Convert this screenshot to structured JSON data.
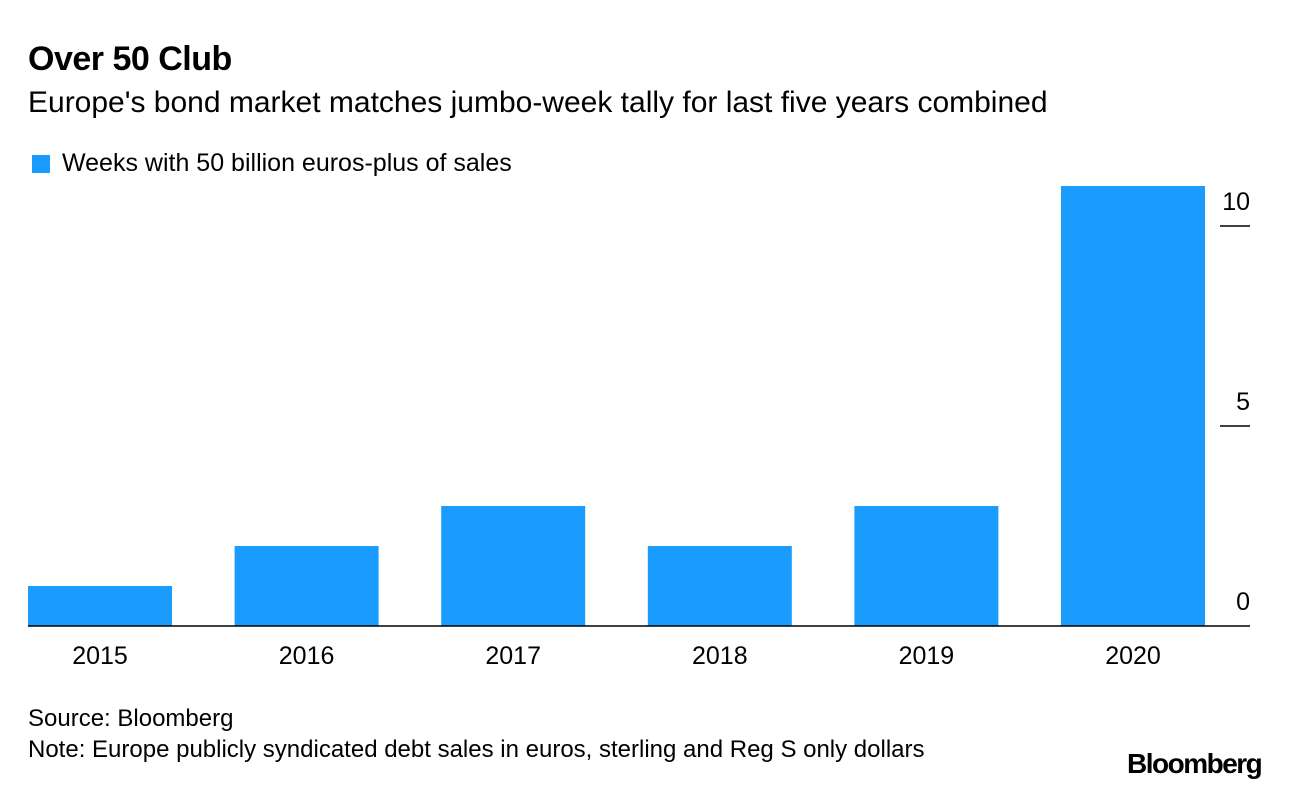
{
  "colors": {
    "bar": "#1a9cff",
    "axis": "#000000",
    "text": "#000000"
  },
  "chart_data": {
    "type": "bar",
    "title": "Over 50 Club",
    "subtitle": "Europe's bond market matches jumbo-week tally for last five years combined",
    "categories": [
      "2015",
      "2016",
      "2017",
      "2018",
      "2019",
      "2020"
    ],
    "series": [
      {
        "name": "Weeks with 50 billion euros-plus of sales",
        "values": [
          1,
          2,
          3,
          2,
          3,
          11
        ]
      }
    ],
    "xlabel": "",
    "ylabel": "",
    "ylim": [
      0,
      11
    ],
    "yticks": [
      0,
      5,
      10
    ],
    "yaxis_position": "right",
    "grid": false,
    "legend": "top-left"
  },
  "footer": {
    "source": "Source: Bloomberg",
    "note": "Note: Europe publicly syndicated debt sales in euros, sterling and Reg S only dollars",
    "logo": "Bloomberg"
  }
}
